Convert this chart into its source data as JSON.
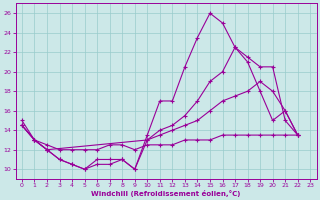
{
  "xlabel": "Windchill (Refroidissement éolien,°C)",
  "bg_color": "#cce8e8",
  "grid_color": "#99cccc",
  "line_color": "#990099",
  "xlim": [
    -0.5,
    23.5
  ],
  "ylim": [
    9,
    27
  ],
  "yticks": [
    10,
    12,
    14,
    16,
    18,
    20,
    22,
    24,
    26
  ],
  "xticks": [
    0,
    1,
    2,
    3,
    4,
    5,
    6,
    7,
    8,
    9,
    10,
    11,
    12,
    13,
    14,
    15,
    16,
    17,
    18,
    19,
    20,
    21,
    22,
    23
  ],
  "line1_x": [
    0,
    1,
    2,
    3,
    4,
    5,
    6,
    7,
    8,
    9,
    10,
    11,
    12,
    13,
    14,
    15,
    16,
    17,
    18,
    19,
    20,
    21,
    22
  ],
  "line1_y": [
    15,
    13,
    12,
    11,
    10.5,
    10,
    11,
    11,
    11,
    10,
    13.5,
    17,
    17,
    20.5,
    23.5,
    26,
    25,
    22.5,
    21.5,
    20.5,
    20.5,
    15,
    13.5
  ],
  "line2_x": [
    0,
    1,
    2,
    3,
    4,
    5,
    6,
    7,
    8,
    9,
    10,
    11,
    12,
    13,
    14,
    15,
    16,
    17,
    18,
    19,
    20,
    21,
    22
  ],
  "line2_y": [
    14.5,
    13,
    12,
    11,
    10.5,
    10,
    10.5,
    10.5,
    11,
    10,
    13,
    14,
    14.5,
    15.5,
    17,
    19,
    20,
    22.5,
    21,
    18,
    15,
    16,
    13.5
  ],
  "line3_x": [
    0,
    1,
    2,
    10,
    11,
    12,
    13,
    14,
    15,
    16,
    17,
    18,
    19,
    20,
    21,
    22
  ],
  "line3_y": [
    14.5,
    13,
    12,
    13,
    13.5,
    14,
    14.5,
    15,
    16,
    17,
    17.5,
    18,
    19,
    18,
    16,
    13.5
  ],
  "line4_x": [
    0,
    1,
    2,
    3,
    4,
    5,
    6,
    7,
    8,
    9,
    10,
    11,
    12,
    13,
    14,
    15,
    16,
    17,
    18,
    19,
    20,
    21,
    22
  ],
  "line4_y": [
    14.5,
    13,
    12.5,
    12,
    12,
    12,
    12,
    12.5,
    12.5,
    12,
    12.5,
    12.5,
    12.5,
    13,
    13,
    13,
    13.5,
    13.5,
    13.5,
    13.5,
    13.5,
    13.5,
    13.5
  ]
}
